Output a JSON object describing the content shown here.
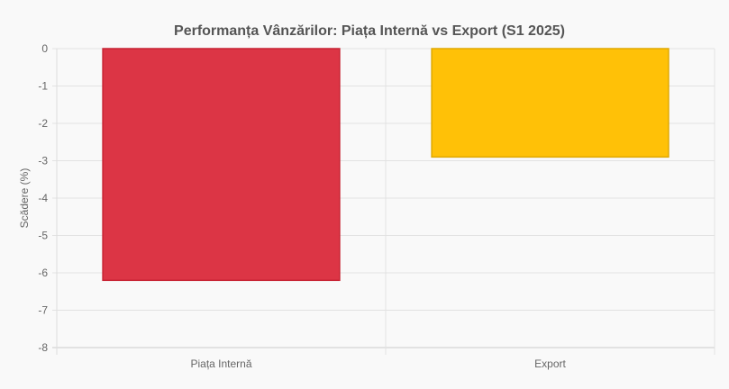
{
  "chart_data": {
    "type": "bar",
    "title": "Performanța Vânzărilor: Piața Internă vs Export (S1 2025)",
    "xlabel": "",
    "ylabel": "Scădere (%)",
    "categories": [
      "Piața Internă",
      "Export"
    ],
    "values": [
      -6.2,
      -2.9
    ],
    "colors": [
      "#dc3545",
      "#ffc107"
    ],
    "border_colors": [
      "#c82333",
      "#e0a800"
    ],
    "ylim": [
      -8,
      0
    ],
    "yticks": [
      0,
      -1,
      -2,
      -3,
      -4,
      -5,
      -6,
      -7,
      -8
    ],
    "grid": true,
    "legend": "none"
  }
}
